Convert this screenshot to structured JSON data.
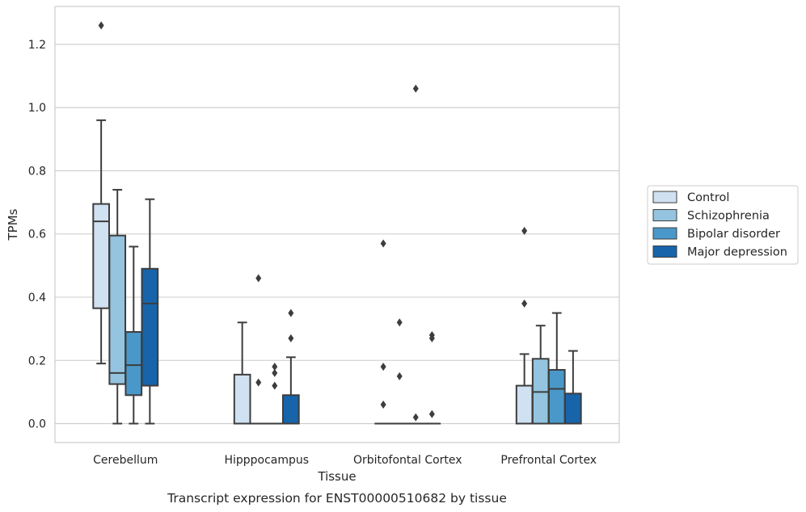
{
  "chart_data": {
    "type": "box",
    "title": "",
    "caption": "Transcript expression for ENST00000510682 by tissue",
    "xlabel": "Tissue",
    "ylabel": "TPMs",
    "ylim": [
      -0.06,
      1.32
    ],
    "yticks": [
      "0.0",
      "0.2",
      "0.4",
      "0.6",
      "0.8",
      "1.0",
      "1.2"
    ],
    "grid": "horizontal",
    "legend_position": "right",
    "categories": [
      "Cerebellum",
      "Hipppocampus",
      "Orbitofontal Cortex",
      "Prefrontal Cortex"
    ],
    "series": [
      {
        "name": "Control",
        "color": "#d0e1f2",
        "boxes": [
          {
            "q1": 0.365,
            "median": 0.64,
            "q3": 0.695,
            "whisker_low": 0.19,
            "whisker_high": 0.96,
            "outliers": [
              1.26
            ]
          },
          {
            "q1": 0.0,
            "median": 0.0,
            "q3": 0.155,
            "whisker_low": 0.0,
            "whisker_high": 0.32,
            "outliers": []
          },
          {
            "q1": 0.0,
            "median": 0.0,
            "q3": 0.0,
            "whisker_low": 0.0,
            "whisker_high": 0.0,
            "outliers": [
              0.57,
              0.18,
              0.06
            ]
          },
          {
            "q1": 0.0,
            "median": 0.0,
            "q3": 0.12,
            "whisker_low": 0.0,
            "whisker_high": 0.22,
            "outliers": [
              0.61,
              0.38
            ]
          }
        ]
      },
      {
        "name": "Schizophrenia",
        "color": "#94c4df",
        "boxes": [
          {
            "q1": 0.125,
            "median": 0.16,
            "q3": 0.595,
            "whisker_low": 0.0,
            "whisker_high": 0.74,
            "outliers": []
          },
          {
            "q1": 0.0,
            "median": 0.0,
            "q3": 0.0,
            "whisker_low": 0.0,
            "whisker_high": 0.0,
            "outliers": [
              0.46,
              0.13
            ]
          },
          {
            "q1": 0.0,
            "median": 0.0,
            "q3": 0.0,
            "whisker_low": 0.0,
            "whisker_high": 0.0,
            "outliers": [
              0.32,
              0.15
            ]
          },
          {
            "q1": 0.0,
            "median": 0.1,
            "q3": 0.205,
            "whisker_low": 0.0,
            "whisker_high": 0.31,
            "outliers": []
          }
        ]
      },
      {
        "name": "Bipolar disorder",
        "color": "#4a98c9",
        "boxes": [
          {
            "q1": 0.09,
            "median": 0.185,
            "q3": 0.29,
            "whisker_low": 0.0,
            "whisker_high": 0.56,
            "outliers": []
          },
          {
            "q1": 0.0,
            "median": 0.0,
            "q3": 0.0,
            "whisker_low": 0.0,
            "whisker_high": 0.0,
            "outliers": [
              0.18,
              0.16,
              0.12
            ]
          },
          {
            "q1": 0.0,
            "median": 0.0,
            "q3": 0.0,
            "whisker_low": 0.0,
            "whisker_high": 0.0,
            "outliers": [
              1.06,
              0.02
            ]
          },
          {
            "q1": 0.0,
            "median": 0.11,
            "q3": 0.17,
            "whisker_low": 0.0,
            "whisker_high": 0.35,
            "outliers": []
          }
        ]
      },
      {
        "name": "Major depression",
        "color": "#1764ab",
        "boxes": [
          {
            "q1": 0.12,
            "median": 0.38,
            "q3": 0.49,
            "whisker_low": 0.0,
            "whisker_high": 0.71,
            "outliers": []
          },
          {
            "q1": 0.0,
            "median": 0.0,
            "q3": 0.09,
            "whisker_low": 0.0,
            "whisker_high": 0.21,
            "outliers": [
              0.35,
              0.27
            ]
          },
          {
            "q1": 0.0,
            "median": 0.0,
            "q3": 0.0,
            "whisker_low": 0.0,
            "whisker_high": 0.0,
            "outliers": [
              0.28,
              0.27,
              0.03
            ]
          },
          {
            "q1": 0.0,
            "median": 0.0,
            "q3": 0.095,
            "whisker_low": 0.0,
            "whisker_high": 0.23,
            "outliers": []
          }
        ]
      }
    ]
  }
}
